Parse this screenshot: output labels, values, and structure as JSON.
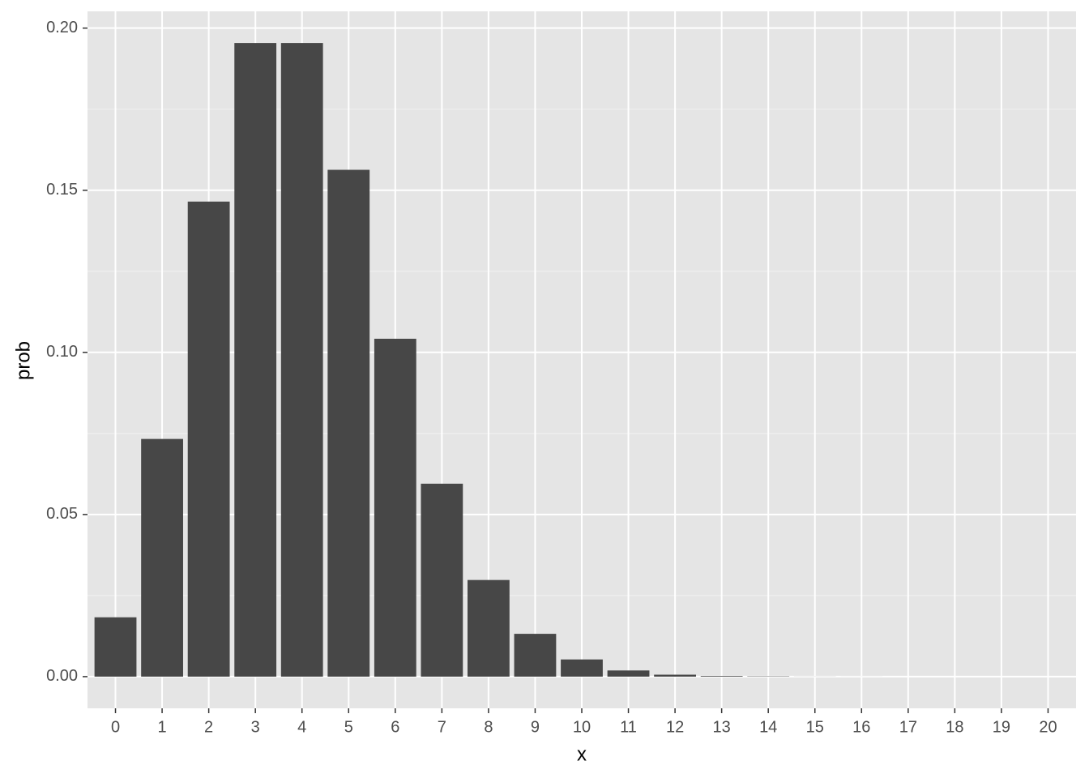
{
  "chart_data": {
    "type": "bar",
    "x_label": "x",
    "y_label": "prob",
    "categories": [
      "0",
      "1",
      "2",
      "3",
      "4",
      "5",
      "6",
      "7",
      "8",
      "9",
      "10",
      "11",
      "12",
      "13",
      "14",
      "15",
      "16",
      "17",
      "18",
      "19",
      "20"
    ],
    "values": [
      0.0183,
      0.0733,
      0.1465,
      0.1954,
      0.1954,
      0.1563,
      0.1042,
      0.0595,
      0.0298,
      0.0132,
      0.0053,
      0.0019,
      0.0006,
      0.0002,
      0.0001,
      2e-05,
      1e-05,
      0,
      0,
      0,
      0
    ],
    "color": "#474747",
    "ylim": [
      -0.00977,
      0.20517
    ],
    "yticks": [
      {
        "value": 0,
        "label": "0.00"
      },
      {
        "value": 0.05,
        "label": "0.05"
      },
      {
        "value": 0.1,
        "label": "0.10"
      },
      {
        "value": 0.15,
        "label": "0.15"
      },
      {
        "value": 0.2,
        "label": "0.20"
      }
    ],
    "grid": true,
    "panel_color": "#e5e5e5"
  }
}
